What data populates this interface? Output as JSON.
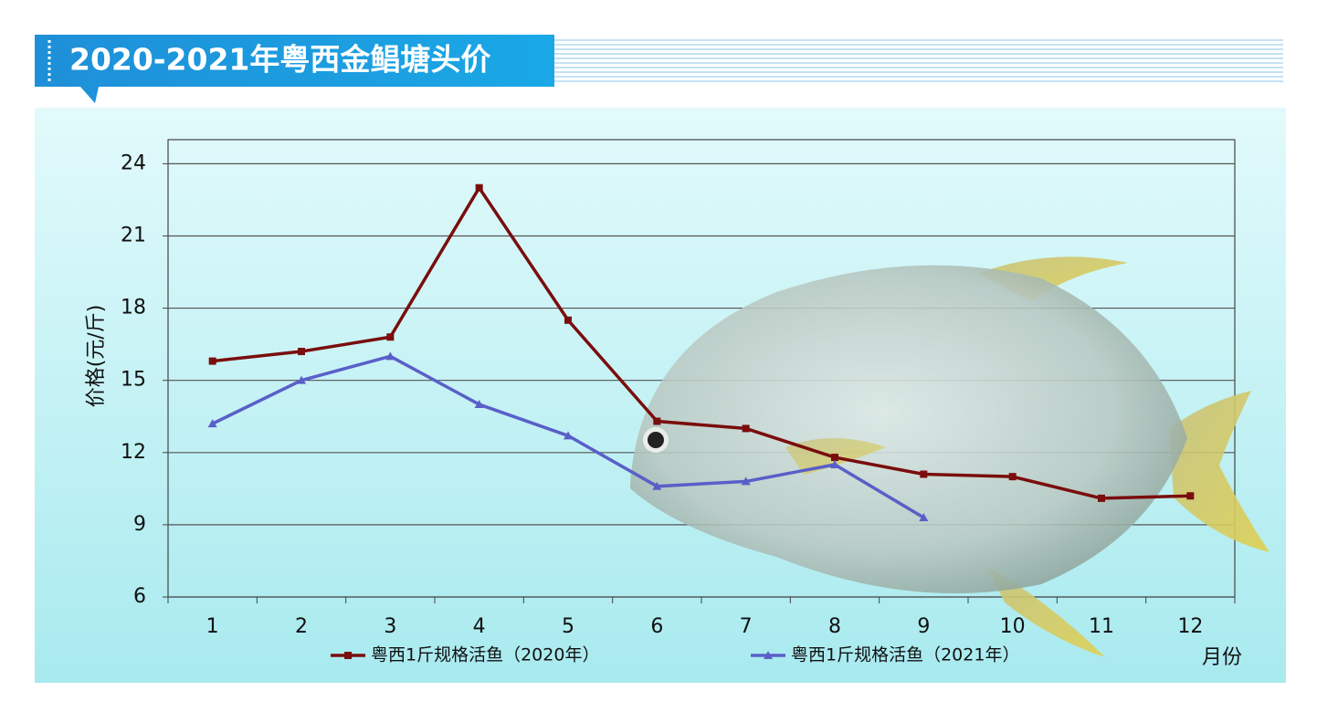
{
  "chart_data": {
    "type": "line",
    "title": "2020-2021年粤西金鲳塘头价",
    "y_label": "价格(元/斤)",
    "x_label": "月份",
    "categories": [
      "1",
      "2",
      "3",
      "4",
      "5",
      "6",
      "7",
      "8",
      "9",
      "10",
      "11",
      "12"
    ],
    "series": [
      {
        "name": "粤西1斤规格活鱼（2020年）",
        "color": "#7a0d0d",
        "marker": "square",
        "values": [
          15.8,
          16.2,
          16.8,
          23.0,
          17.5,
          13.3,
          13.0,
          11.8,
          11.1,
          11.0,
          10.1,
          10.2
        ]
      },
      {
        "name": "粤西1斤规格活鱼（2021年）",
        "color": "#5a5fc8",
        "marker": "triangle",
        "values": [
          13.2,
          15.0,
          16.0,
          14.0,
          12.7,
          10.6,
          10.8,
          11.5,
          9.3,
          null,
          null,
          null
        ]
      }
    ],
    "ylim": [
      6,
      25
    ],
    "yticks": [
      6,
      9,
      12,
      15,
      18,
      21,
      24
    ],
    "grid": true,
    "legend": "bottom"
  }
}
